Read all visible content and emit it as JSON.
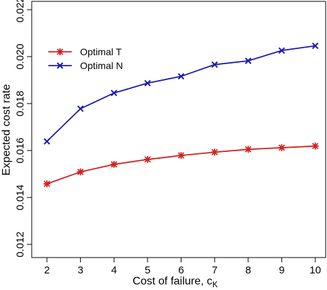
{
  "chart_data": {
    "type": "line",
    "title": "",
    "xlabel": "Cost of failure, c",
    "xlabel_subscript": "K",
    "ylabel": "Expected cost rate",
    "x": [
      2,
      3,
      4,
      5,
      6,
      7,
      8,
      9,
      10
    ],
    "xlim": [
      2,
      10
    ],
    "ylim": [
      0.012,
      0.022
    ],
    "xticks": [
      "2",
      "3",
      "4",
      "5",
      "6",
      "7",
      "8",
      "9",
      "10"
    ],
    "yticks": [
      "0.012",
      "0.014",
      "0.016",
      "0.018",
      "0.020",
      "0.022"
    ],
    "ytick_values": [
      0.012,
      0.014,
      0.016,
      0.018,
      0.02,
      0.022
    ],
    "grid": false,
    "legend_position": "top-left",
    "series": [
      {
        "name": "Optimal T",
        "color": "#d42020",
        "marker": "asterisk",
        "values": [
          0.01458,
          0.01509,
          0.01541,
          0.01562,
          0.01579,
          0.01593,
          0.01605,
          0.01612,
          0.01619
        ]
      },
      {
        "name": "Optimal N",
        "color": "#1a1ab0",
        "marker": "x",
        "values": [
          0.01639,
          0.01778,
          0.01845,
          0.01887,
          0.01916,
          0.01966,
          0.01982,
          0.02026,
          0.02046
        ]
      }
    ]
  }
}
